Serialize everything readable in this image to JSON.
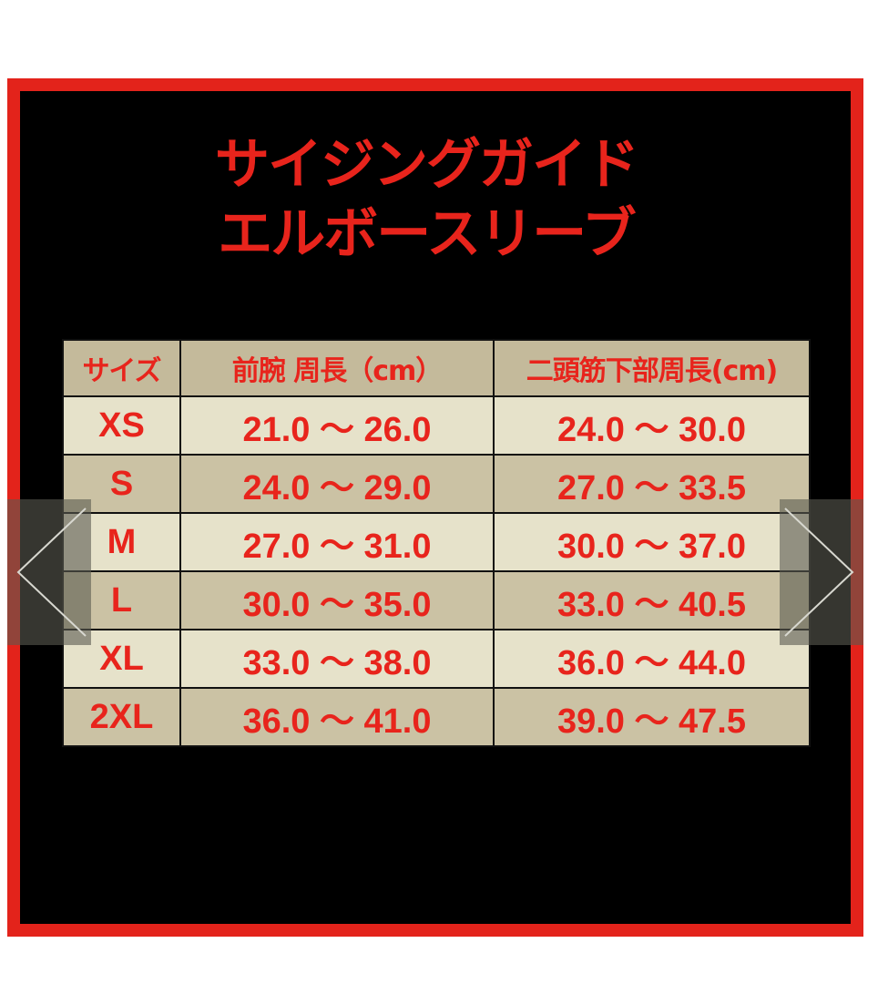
{
  "title": {
    "line1": "サイジングガイド",
    "line2": "エルボースリーブ"
  },
  "table": {
    "headers": [
      "サイズ",
      "前腕 周長（cm）",
      "二頭筋下部周長(cm)"
    ],
    "rows": [
      [
        "XS",
        "21.0 ～ 26.0",
        "24.0 ～ 30.0"
      ],
      [
        "S",
        "24.0 ～ 29.0",
        "27.0 ～ 33.5"
      ],
      [
        "M",
        "27.0 ～ 31.0",
        "30.0 ～ 37.0"
      ],
      [
        "L",
        "30.0 ～ 35.0",
        "33.0 ～ 40.5"
      ],
      [
        "XL",
        "33.0 ～ 38.0",
        "36.0 ～ 44.0"
      ],
      [
        "2XL",
        "36.0 ～ 41.0",
        "39.0 ～ 47.5"
      ]
    ]
  },
  "carousel": {
    "prev_icon": "chevron-left-icon",
    "next_icon": "chevron-right-icon"
  },
  "colors": {
    "frame": "#e3231b",
    "text": "#e8241c",
    "header_bg": "#c4ba9b",
    "row_light": "#e6e2ca",
    "row_dark": "#cbc2a4"
  }
}
